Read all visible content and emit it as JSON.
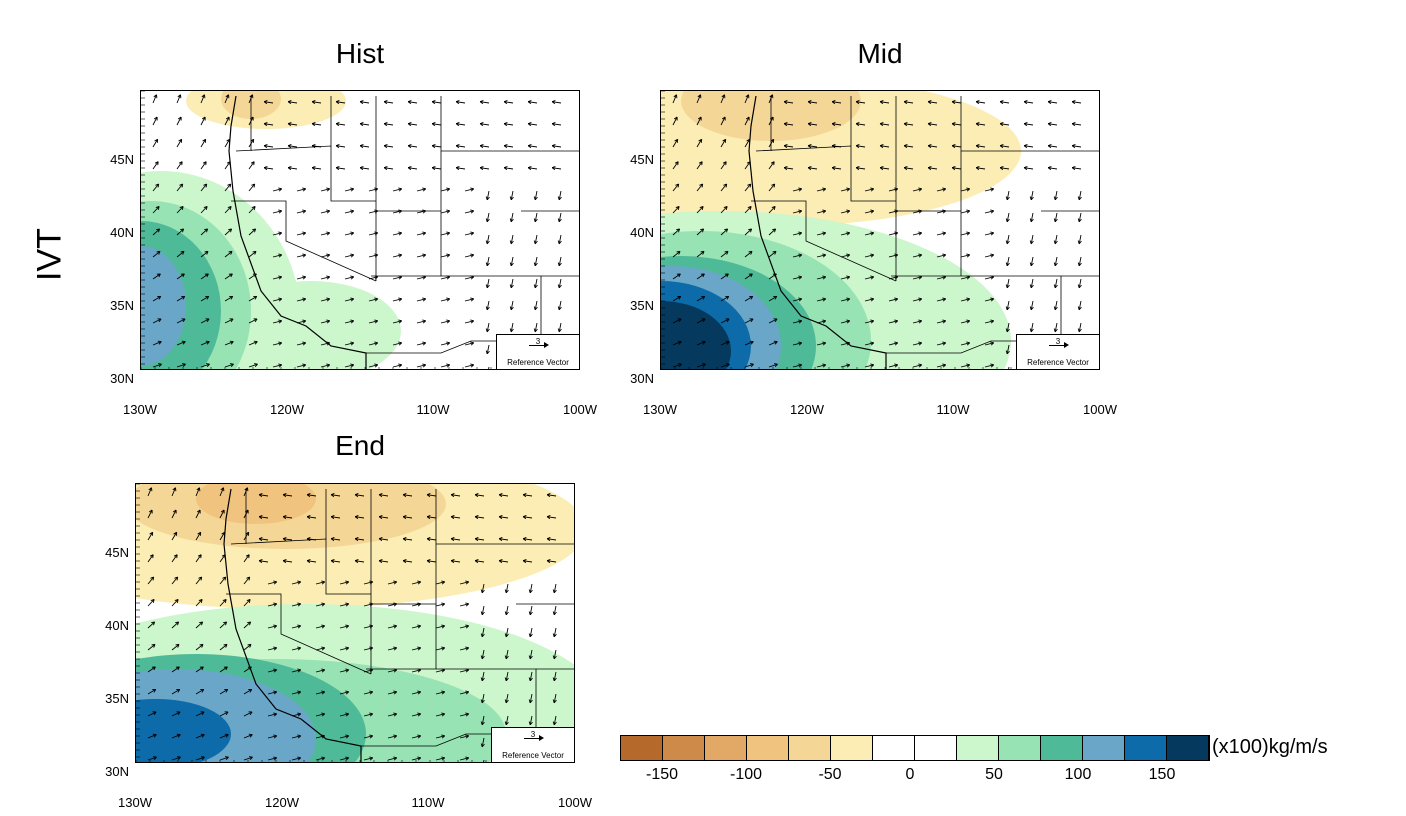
{
  "row_label": "IVT",
  "panels": [
    {
      "id": "hist",
      "title": "Hist"
    },
    {
      "id": "mid",
      "title": "Mid"
    },
    {
      "id": "end",
      "title": "End"
    }
  ],
  "lat_labels": [
    "45N",
    "40N",
    "35N",
    "30N"
  ],
  "lon_labels": [
    "130W",
    "120W",
    "110W",
    "100W"
  ],
  "ref_vector": {
    "value": "3",
    "label": "Reference Vector"
  },
  "colorbar": {
    "colors": [
      "#b5692a",
      "#cd8a48",
      "#e1a866",
      "#f0c47f",
      "#f4d796",
      "#fbedb4",
      "#ffffff",
      "#ffffff",
      "#ccf6cc",
      "#97e3b3",
      "#4fba98",
      "#6aa6c8",
      "#0c6ba8",
      "#053a5e"
    ],
    "tick_labels": [
      "-150",
      "-100",
      "-50",
      "0",
      "50",
      "100",
      "150"
    ],
    "units": "(x100)kg/m/s"
  }
}
